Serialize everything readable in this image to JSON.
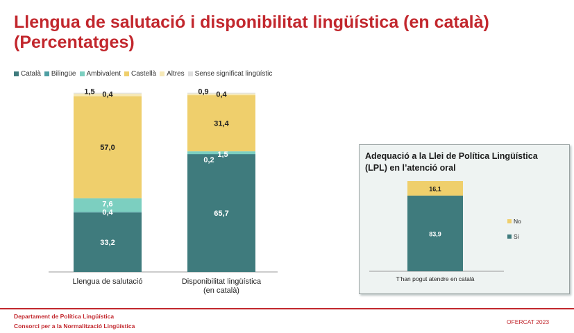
{
  "title": {
    "line1": "Llengua de salutació i disponibilitat lingüística (en català)",
    "line2": "(Percentatges)"
  },
  "colors": {
    "title_red": "#c2272d",
    "catala": "#3f7b7d",
    "bilingue": "#4e9fa3",
    "ambivalent": "#7ccfc0",
    "castella": "#efcf6c",
    "altres": "#f6e9b8",
    "sense": "#dedede"
  },
  "chart_data": [
    {
      "type": "bar",
      "stacked": true,
      "legend_position": "top-left",
      "ylim": [
        0,
        100
      ],
      "categories": [
        "Llengua de salutació",
        "Disponibilitat lingüística (en català)"
      ],
      "category_lines": [
        [
          "Llengua de salutació"
        ],
        [
          "Disponibilitat lingüística",
          "(en català)"
        ]
      ],
      "series": [
        {
          "name": "Català",
          "color": "#3f7b7d",
          "values": [
            33.2,
            65.7
          ],
          "labels": [
            "33,2",
            "65,7"
          ]
        },
        {
          "name": "Bilingüe",
          "color": "#4e9fa3",
          "values": [
            0.4,
            0.2
          ],
          "labels": [
            "0,4",
            "0,2"
          ]
        },
        {
          "name": "Ambivalent",
          "color": "#7ccfc0",
          "values": [
            7.6,
            1.5
          ],
          "labels": [
            "7,6",
            "1,5"
          ]
        },
        {
          "name": "Castellà",
          "color": "#efcf6c",
          "values": [
            57.0,
            31.4
          ],
          "labels": [
            "57,0",
            "31,4"
          ]
        },
        {
          "name": "Altres",
          "color": "#f6e9b8",
          "values": [
            1.5,
            0.9
          ],
          "labels": [
            "1,5",
            "0,9"
          ]
        },
        {
          "name": "Sense significat lingüístic",
          "color": "#dedede",
          "values": [
            0.4,
            0.4
          ],
          "labels": [
            "0,4",
            "0,4"
          ]
        }
      ]
    },
    {
      "type": "bar",
      "stacked": true,
      "legend_position": "right",
      "title_lines": [
        "Adequació a la Llei de Política Lingüística",
        "(LPL) en l’atenció oral"
      ],
      "ylim": [
        0,
        100
      ],
      "categories": [
        "T’han pogut atendre en català"
      ],
      "series": [
        {
          "name": "Sí",
          "color": "#3f7b7d",
          "values": [
            83.9
          ],
          "labels": [
            "83,9"
          ]
        },
        {
          "name": "No",
          "color": "#efcf6c",
          "values": [
            16.1
          ],
          "labels": [
            "16,1"
          ]
        }
      ]
    }
  ],
  "footer": {
    "org_line1": "Departament de Política Lingüística",
    "org_line2": "Consorci per a la Normalització Lingüística",
    "source": "OFERCAT 2023"
  }
}
